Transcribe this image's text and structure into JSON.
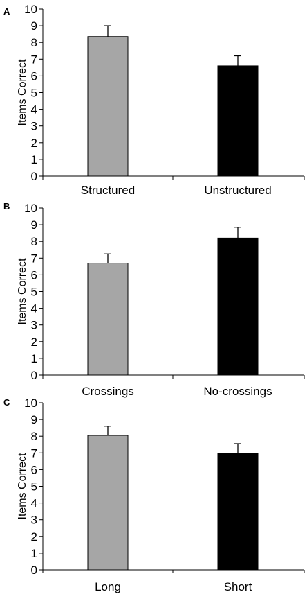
{
  "chart_data": [
    {
      "type": "bar",
      "panel": "A",
      "categories": [
        "Structured",
        "Unstructured"
      ],
      "values": [
        8.35,
        6.6
      ],
      "errors": [
        0.65,
        0.6
      ],
      "colors": [
        "#a6a6a6",
        "#000000"
      ],
      "ylabel": "Items Correct",
      "ylim": [
        0,
        10
      ],
      "yticks": [
        0,
        1,
        2,
        3,
        4,
        5,
        6,
        7,
        8,
        9,
        10
      ],
      "grid": false
    },
    {
      "type": "bar",
      "panel": "B",
      "categories": [
        "Crossings",
        "No-crossings"
      ],
      "values": [
        6.7,
        8.2
      ],
      "errors": [
        0.55,
        0.65
      ],
      "colors": [
        "#a6a6a6",
        "#000000"
      ],
      "ylabel": "Items Correct",
      "ylim": [
        0,
        10
      ],
      "yticks": [
        0,
        1,
        2,
        3,
        4,
        5,
        6,
        7,
        8,
        9,
        10
      ],
      "grid": false
    },
    {
      "type": "bar",
      "panel": "C",
      "categories": [
        "Long",
        "Short"
      ],
      "values": [
        8.05,
        6.95
      ],
      "errors": [
        0.55,
        0.6
      ],
      "colors": [
        "#a6a6a6",
        "#000000"
      ],
      "ylabel": "Items Correct",
      "ylim": [
        0,
        10
      ],
      "yticks": [
        0,
        1,
        2,
        3,
        4,
        5,
        6,
        7,
        8,
        9,
        10
      ],
      "grid": false
    }
  ]
}
